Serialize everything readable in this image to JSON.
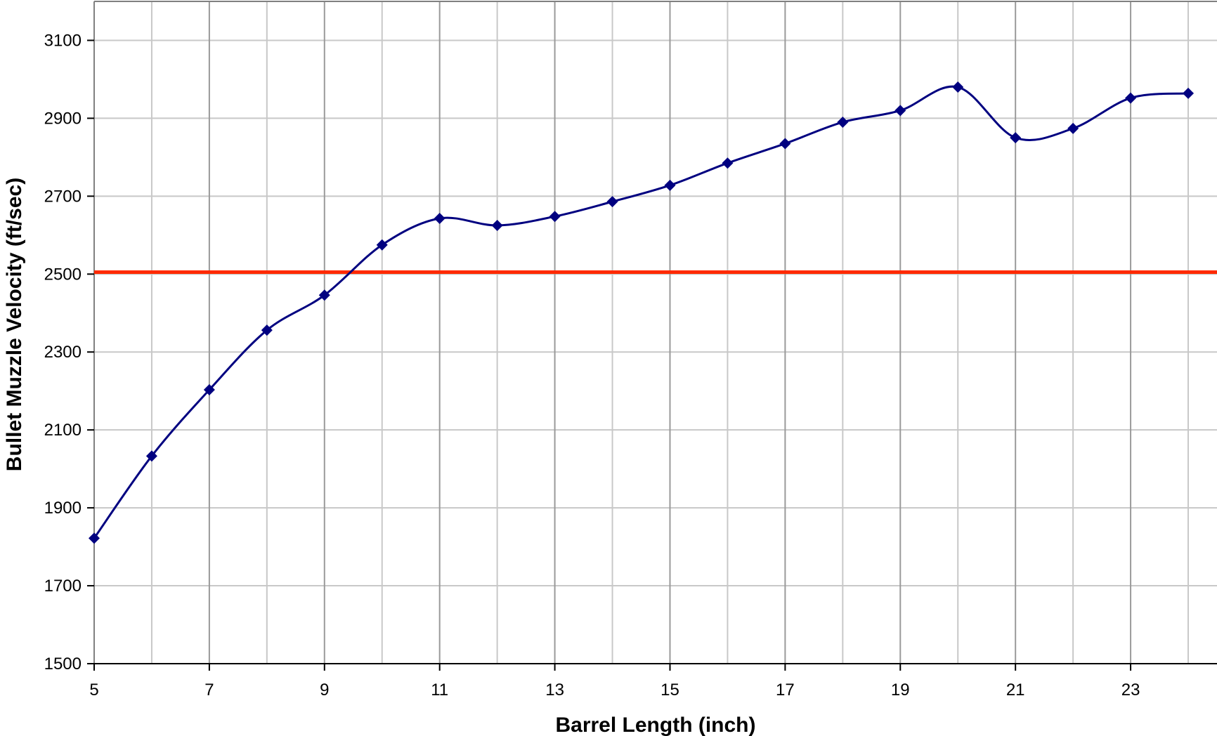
{
  "chart_data": {
    "type": "line",
    "title": "",
    "xlabel": "Barrel Length (inch)",
    "ylabel": "Bullet Muzzle Velocity (ft/sec)",
    "xlim": [
      5,
      24.5
    ],
    "ylim": [
      1500,
      3200
    ],
    "x_ticks": [
      5,
      7,
      9,
      11,
      13,
      15,
      17,
      19,
      21,
      23
    ],
    "y_ticks": [
      1500,
      1700,
      1900,
      2100,
      2300,
      2500,
      2700,
      2900,
      3100
    ],
    "grid": true,
    "legend": "none",
    "series": [
      {
        "x": [
          5,
          6,
          7,
          8,
          9,
          10,
          11,
          12,
          13,
          14,
          15,
          16,
          17,
          18,
          19,
          20,
          21,
          22,
          23,
          24
        ],
        "y": [
          1822,
          2033,
          2203,
          2356,
          2446,
          2575,
          2643,
          2625,
          2648,
          2686,
          2728,
          2785,
          2835,
          2890,
          2920,
          2980,
          2850,
          2874,
          2952,
          2964
        ],
        "color": "#000080",
        "marker": "diamond",
        "smooth": true
      }
    ],
    "reference_lines": [
      {
        "y": 2505,
        "color": "#ff2a00"
      }
    ]
  }
}
